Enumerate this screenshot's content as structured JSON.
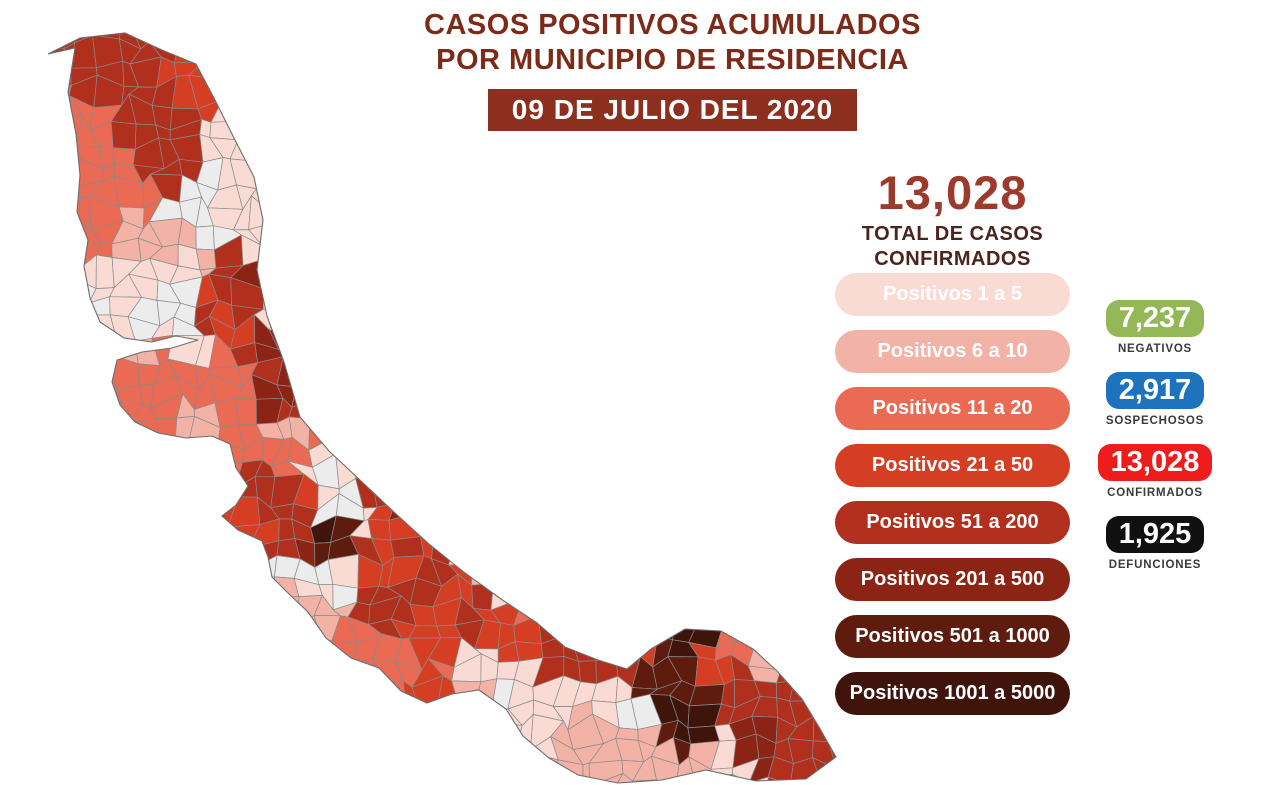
{
  "header": {
    "title_line1": "CASOS POSITIVOS ACUMULADOS",
    "title_line2": "POR MUNICIPIO DE RESIDENCIA",
    "date_banner": "09 DE JULIO DEL 2020"
  },
  "total": {
    "value": "13,028",
    "caption_line1": "TOTAL DE CASOS",
    "caption_line2": "CONFIRMADOS"
  },
  "legend": {
    "items": [
      {
        "label": "Positivos 1 a 5",
        "hex": "#f9dbd4"
      },
      {
        "label": "Positivos 6 a 10",
        "hex": "#f3b2a6"
      },
      {
        "label": "Positivos 11 a 20",
        "hex": "#ea6a54"
      },
      {
        "label": "Positivos 21 a 50",
        "hex": "#d63e24"
      },
      {
        "label": "Positivos 51 a 200",
        "hex": "#b02f1d"
      },
      {
        "label": "Positivos 201 a 500",
        "hex": "#8c2415"
      },
      {
        "label": "Positivos 501 a 1000",
        "hex": "#5e1c0f"
      },
      {
        "label": "Positivos 1001 a 5000",
        "hex": "#3f140a"
      }
    ]
  },
  "stats": {
    "items": [
      {
        "value": "7,237",
        "label": "NEGATIVOS",
        "hex": "#94b857"
      },
      {
        "value": "2,917",
        "label": "SOSPECHOSOS",
        "hex": "#1f73bd"
      },
      {
        "value": "13,028",
        "label": "CONFIRMADOS",
        "hex": "#ee1c1c"
      },
      {
        "value": "1,925",
        "label": "DEFUNCIONES",
        "hex": "#101010"
      }
    ]
  },
  "map": {
    "region": "Veracruz, choropleth por municipio",
    "no_cases_color": "#ececec",
    "cell_border_color": "#8a8a8a",
    "outline_color": "#6d6d6d"
  },
  "theme": {
    "title_color": "#7d2b18",
    "banner_bg": "#8c2f1f",
    "total_value_color": "#9c3b2b",
    "total_caption_color": "#4a241d",
    "stat_label_color": "#3a3a3a"
  }
}
